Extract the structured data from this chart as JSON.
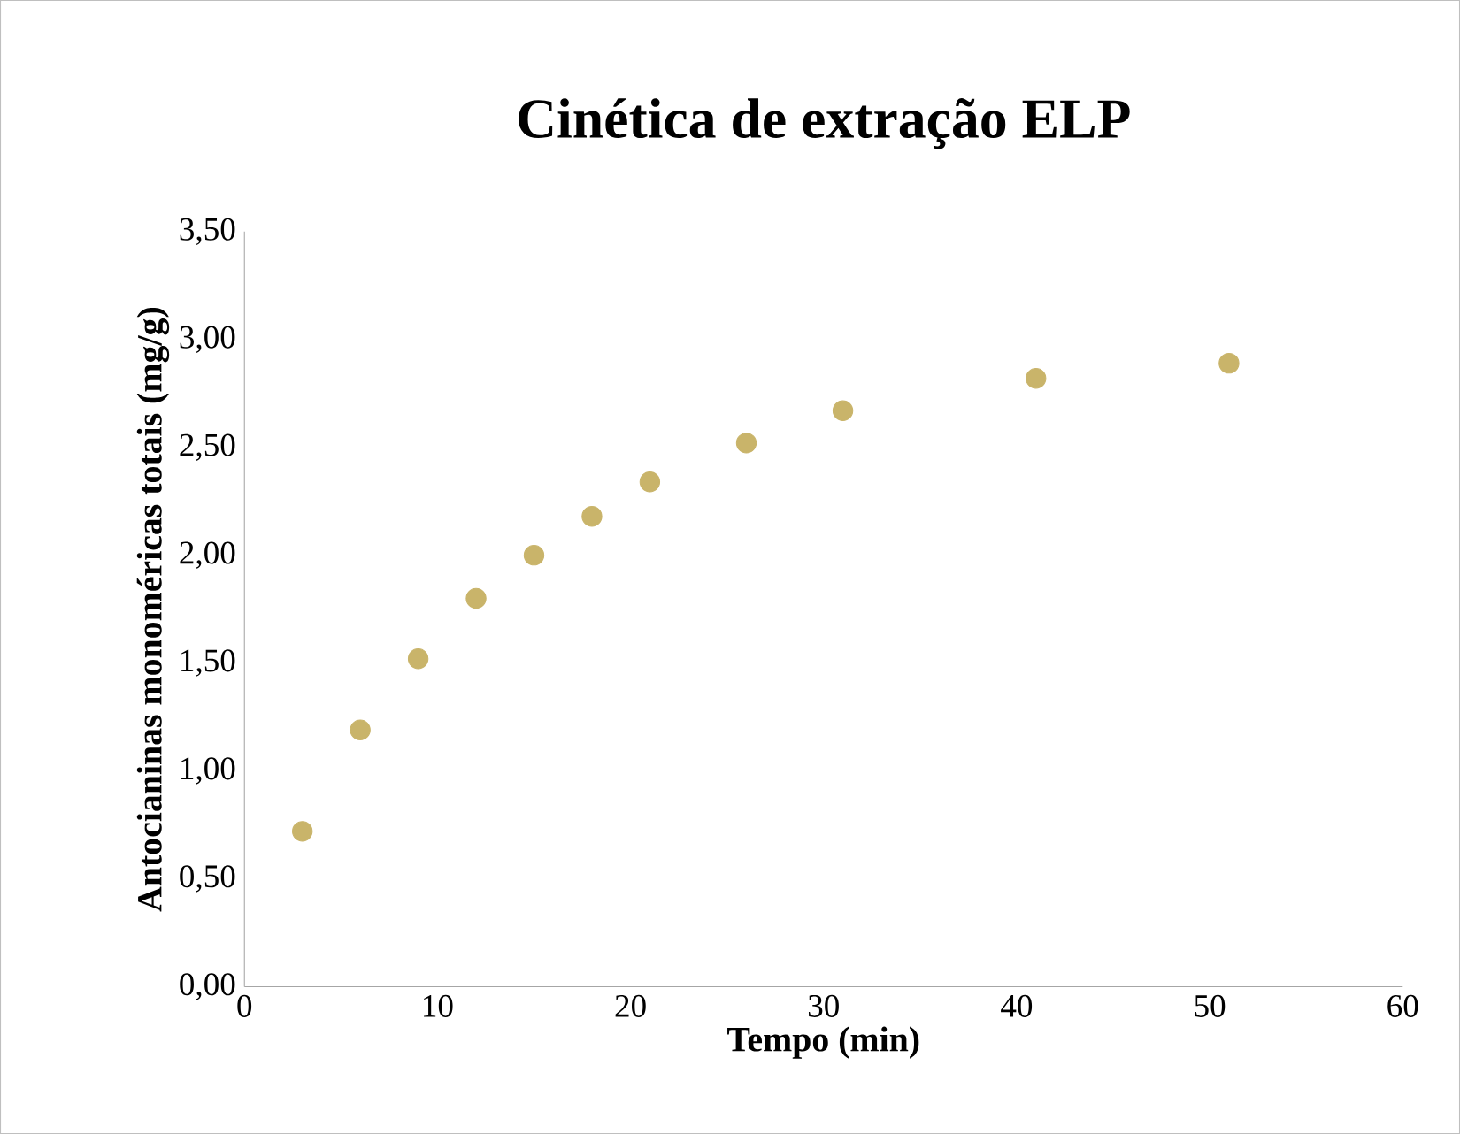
{
  "chart_data": {
    "type": "scatter",
    "title": "Cinética de extração ELP",
    "xlabel": "Tempo (min)",
    "ylabel": "Antocianinas monoméricas totais (mg/g)",
    "x": [
      3,
      6,
      9,
      12,
      15,
      18,
      21,
      26,
      31,
      41,
      51
    ],
    "values": [
      0.72,
      1.19,
      1.52,
      1.8,
      2.0,
      2.18,
      2.34,
      2.52,
      2.67,
      2.82,
      2.89
    ],
    "color": "#c9b46a",
    "marker": "circle",
    "grid": false,
    "xlim": [
      0,
      60
    ],
    "xticks": [
      0,
      10,
      20,
      30,
      40,
      50,
      60
    ],
    "ylim": [
      0,
      3.5
    ],
    "yticks": [
      {
        "value": 0,
        "label": "0,00"
      },
      {
        "value": 0.5,
        "label": "0,50"
      },
      {
        "value": 1,
        "label": "1,00"
      },
      {
        "value": 1.5,
        "label": "1,50"
      },
      {
        "value": 2,
        "label": "2,00"
      },
      {
        "value": 2.5,
        "label": "2,50"
      },
      {
        "value": 3,
        "label": "3,00"
      },
      {
        "value": 3.5,
        "label": "3,50"
      }
    ]
  }
}
